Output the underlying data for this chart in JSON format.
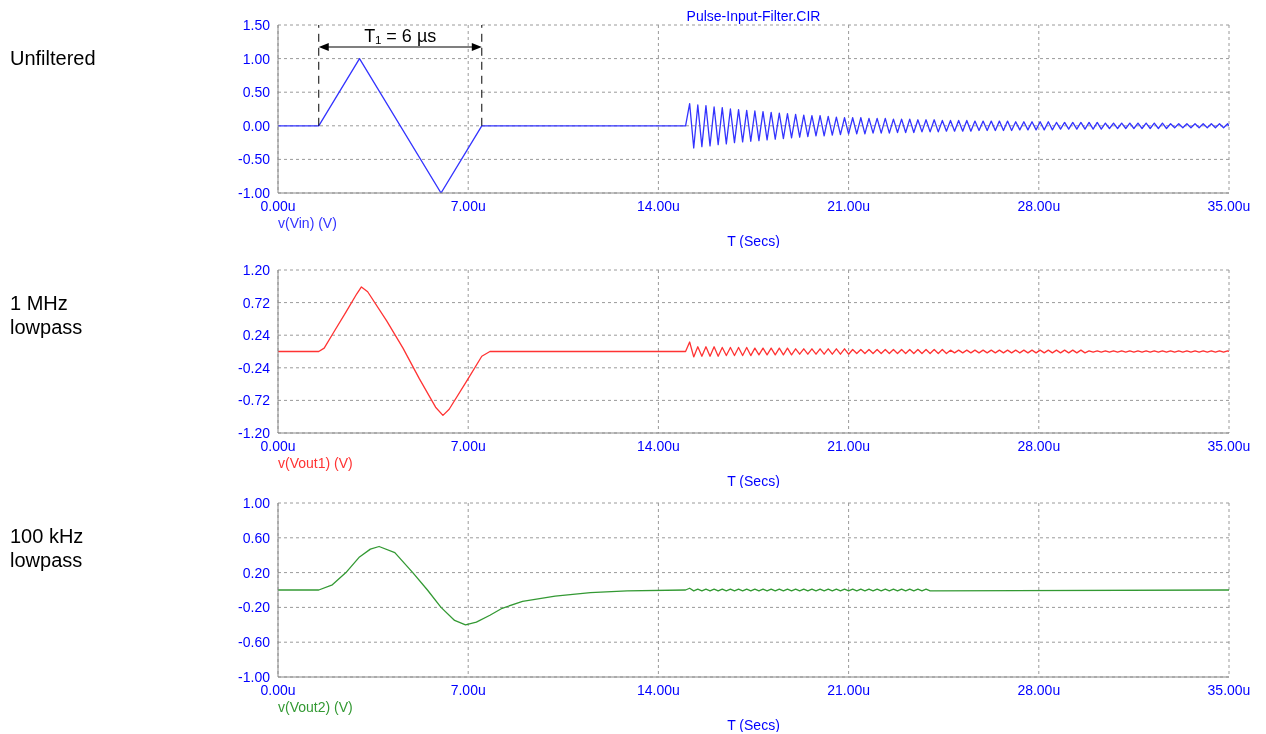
{
  "chart_data": [
    {
      "type": "line",
      "title": "Pulse-Input-Filter.CIR",
      "ylabel": "Unfiltered",
      "xlabel": "T (Secs)",
      "xlim": [
        0,
        35
      ],
      "xticks": [
        {
          "value": 0,
          "label": "0.00u"
        },
        {
          "value": 7,
          "label": "7.00u"
        },
        {
          "value": 14,
          "label": "14.00u"
        },
        {
          "value": 21,
          "label": "21.00u"
        },
        {
          "value": 28,
          "label": "28.00u"
        },
        {
          "value": 35,
          "label": "35.00u"
        }
      ],
      "ylim": [
        -1,
        1.5
      ],
      "yticks": [
        {
          "value": -1,
          "label": "-1.00"
        },
        {
          "value": -0.5,
          "label": "-0.50"
        },
        {
          "value": 0,
          "label": "0.00"
        },
        {
          "value": 0.5,
          "label": "0.50"
        },
        {
          "value": 1,
          "label": "1.00"
        },
        {
          "value": 1.5,
          "label": "1.50"
        }
      ],
      "grid": true,
      "legend": "bottom left",
      "annotations": [
        "T₁ = 6 µs"
      ],
      "ref_lines": [
        {
          "axis": "x",
          "value": 1.5,
          "color": "#000000",
          "line_style": "dashed"
        },
        {
          "axis": "x",
          "value": 7.5,
          "color": "#000000",
          "line_style": "dashed"
        }
      ],
      "series": [
        {
          "name": "v(Vin) (V)",
          "color": "#3333ff",
          "x": [
            0,
            1.5,
            3,
            6,
            7.5,
            15,
            15.15,
            15.3,
            15.45,
            15.6,
            15.75,
            15.9,
            16.05,
            16.2,
            16.35,
            16.5,
            16.65,
            16.8,
            16.95,
            17.1,
            17.25,
            17.4,
            17.55,
            17.7,
            17.85,
            18,
            18.15,
            18.3,
            18.45,
            18.6,
            18.75,
            18.9,
            19.05,
            19.2,
            19.35,
            19.5,
            19.65,
            19.8,
            19.95,
            20.1,
            20.25,
            20.4,
            20.55,
            20.7,
            20.85,
            21,
            21.15,
            21.3,
            21.45,
            21.6,
            21.75,
            21.9,
            22.05,
            22.2,
            22.35,
            22.5,
            22.65,
            22.8,
            22.95,
            23.1,
            23.25,
            23.4,
            23.55,
            23.7,
            23.85,
            24,
            24.15,
            24.3,
            24.45,
            24.6,
            24.75,
            24.9,
            25.05,
            25.2,
            25.35,
            25.5,
            25.65,
            25.8,
            25.95,
            26.1,
            26.25,
            26.4,
            26.55,
            26.7,
            26.85,
            27,
            27.15,
            27.3,
            27.45,
            27.6,
            27.75,
            27.9,
            28.05,
            28.2,
            28.35,
            28.5,
            28.65,
            28.8,
            28.95,
            29.1,
            29.25,
            29.4,
            29.55,
            29.7,
            29.85,
            30,
            30.15,
            30.3,
            30.45,
            30.6,
            30.75,
            30.9,
            31.05,
            31.2,
            31.35,
            31.5,
            31.65,
            31.8,
            31.95,
            32.1,
            32.25,
            32.4,
            32.55,
            32.7,
            32.85,
            33,
            33.15,
            33.3,
            33.45,
            33.6,
            33.75,
            33.9,
            34.05,
            34.2,
            34.35,
            34.5,
            34.65,
            34.8,
            34.95,
            35
          ],
          "values": [
            0,
            0,
            1,
            -1,
            0,
            0,
            0.33,
            -0.33,
            0.31,
            -0.31,
            0.3,
            -0.3,
            0.28,
            -0.28,
            0.27,
            -0.27,
            0.25,
            -0.25,
            0.24,
            -0.24,
            0.23,
            -0.23,
            0.22,
            -0.22,
            0.21,
            -0.21,
            0.2,
            -0.2,
            0.19,
            -0.19,
            0.18,
            -0.18,
            0.17,
            -0.17,
            0.16,
            -0.16,
            0.15,
            -0.15,
            0.15,
            -0.15,
            0.14,
            -0.14,
            0.13,
            -0.13,
            0.12,
            -0.12,
            0.12,
            -0.12,
            0.12,
            -0.12,
            0.11,
            -0.11,
            0.11,
            -0.11,
            0.11,
            -0.11,
            0.1,
            -0.1,
            0.1,
            -0.1,
            0.1,
            -0.1,
            0.09,
            -0.09,
            0.09,
            -0.09,
            0.09,
            -0.09,
            0.08,
            -0.08,
            0.08,
            -0.08,
            0.08,
            -0.08,
            0.08,
            -0.08,
            0.07,
            -0.07,
            0.07,
            -0.07,
            0.07,
            -0.07,
            0.07,
            -0.07,
            0.07,
            -0.07,
            0.06,
            -0.06,
            0.06,
            -0.06,
            0.06,
            -0.06,
            0.06,
            -0.06,
            0.06,
            -0.06,
            0.05,
            -0.05,
            0.05,
            -0.05,
            0.05,
            -0.05,
            0.05,
            -0.05,
            0.05,
            -0.05,
            0.05,
            -0.05,
            0.04,
            -0.04,
            0.04,
            -0.04,
            0.04,
            -0.04,
            0.04,
            -0.04,
            0.04,
            -0.04,
            0.04,
            -0.04,
            0.04,
            -0.04,
            0.04,
            -0.04,
            0.03,
            -0.03,
            0.03,
            -0.03,
            0.03,
            -0.03,
            0.03,
            -0.03,
            0.03,
            -0.03,
            0.03,
            -0.03,
            0.03,
            -0.03,
            0.03,
            0
          ]
        }
      ]
    },
    {
      "type": "line",
      "ylabel": "1 MHz lowpass",
      "xlabel": "T (Secs)",
      "xlim": [
        0,
        35
      ],
      "xticks": [
        {
          "value": 0,
          "label": "0.00u"
        },
        {
          "value": 7,
          "label": "7.00u"
        },
        {
          "value": 14,
          "label": "14.00u"
        },
        {
          "value": 21,
          "label": "21.00u"
        },
        {
          "value": 28,
          "label": "28.00u"
        },
        {
          "value": 35,
          "label": "35.00u"
        }
      ],
      "ylim": [
        -1.2,
        1.2
      ],
      "yticks": [
        {
          "value": -1.2,
          "label": "-1.20"
        },
        {
          "value": -0.72,
          "label": "-0.72"
        },
        {
          "value": -0.24,
          "label": "-0.24"
        },
        {
          "value": 0.24,
          "label": "0.24"
        },
        {
          "value": 0.72,
          "label": "0.72"
        },
        {
          "value": 1.2,
          "label": "1.20"
        }
      ],
      "grid": true,
      "legend": "bottom left",
      "series": [
        {
          "name": "v(Vout1) (V)",
          "color": "#ff3333",
          "x": [
            0,
            1.5,
            1.7,
            2,
            2.5,
            2.9,
            3.07,
            3.3,
            4,
            4.6,
            5.2,
            5.8,
            6.07,
            6.3,
            7,
            7.5,
            7.8,
            15,
            15.15,
            15.3,
            15.45,
            15.6,
            15.75,
            15.9,
            16.05,
            16.2,
            16.35,
            16.5,
            16.65,
            16.8,
            16.95,
            17.1,
            17.25,
            17.4,
            17.55,
            17.7,
            17.85,
            18,
            18.15,
            18.3,
            18.45,
            18.6,
            18.75,
            18.9,
            19.05,
            19.2,
            19.35,
            19.5,
            19.65,
            19.8,
            19.95,
            20.1,
            20.25,
            20.4,
            20.55,
            20.7,
            20.85,
            21,
            21.15,
            21.3,
            21.45,
            21.6,
            21.75,
            21.9,
            22.05,
            22.2,
            22.35,
            22.5,
            22.65,
            22.8,
            22.95,
            23.1,
            23.25,
            23.4,
            23.55,
            23.7,
            23.85,
            24,
            24.15,
            24.3,
            24.45,
            24.6,
            24.75,
            24.9,
            25.05,
            25.2,
            25.35,
            25.5,
            25.65,
            25.8,
            25.95,
            26.1,
            26.25,
            26.4,
            26.55,
            26.7,
            26.85,
            27,
            27.15,
            27.3,
            27.45,
            27.6,
            27.75,
            27.9,
            28.05,
            28.2,
            28.35,
            28.5,
            28.65,
            28.8,
            28.95,
            29.1,
            29.25,
            29.4,
            29.55,
            29.7,
            29.85,
            30,
            30.15,
            30.3,
            30.45,
            30.6,
            30.75,
            30.9,
            31.05,
            31.2,
            31.35,
            31.5,
            31.65,
            31.8,
            31.95,
            32.1,
            32.25,
            32.4,
            32.55,
            32.7,
            32.85,
            33,
            33.15,
            33.3,
            33.45,
            33.6,
            33.75,
            33.9,
            34.05,
            34.2,
            34.35,
            34.5,
            34.65,
            34.8,
            34.95,
            35
          ],
          "values": [
            0,
            0,
            0.05,
            0.25,
            0.58,
            0.85,
            0.95,
            0.88,
            0.45,
            0.05,
            -0.4,
            -0.82,
            -0.94,
            -0.85,
            -0.4,
            -0.07,
            0,
            0,
            0.14,
            -0.08,
            0.07,
            -0.07,
            0.07,
            -0.07,
            0.07,
            -0.07,
            0.06,
            -0.06,
            0.06,
            -0.06,
            0.06,
            -0.06,
            0.06,
            -0.06,
            0.05,
            -0.05,
            0.05,
            -0.05,
            0.05,
            -0.05,
            0.05,
            -0.05,
            0.05,
            -0.05,
            0.04,
            -0.04,
            0.04,
            -0.04,
            0.04,
            -0.04,
            0.04,
            -0.04,
            0.04,
            -0.04,
            0.04,
            -0.04,
            0.04,
            -0.04,
            0.03,
            -0.03,
            0.03,
            -0.03,
            0.03,
            -0.03,
            0.03,
            -0.03,
            0.03,
            -0.03,
            0.03,
            -0.03,
            0.03,
            -0.03,
            0.03,
            -0.03,
            0.03,
            -0.03,
            0.03,
            -0.03,
            0.03,
            -0.03,
            0.03,
            -0.03,
            0.02,
            -0.02,
            0.02,
            -0.02,
            0.02,
            -0.02,
            0.02,
            -0.02,
            0.02,
            -0.02,
            0.02,
            -0.02,
            0.02,
            -0.02,
            0.02,
            -0.02,
            0.02,
            -0.02,
            0.02,
            -0.02,
            0.02,
            -0.02,
            0.02,
            -0.02,
            0.02,
            -0.02,
            0.02,
            -0.02,
            0.02,
            -0.02,
            0.02,
            -0.02,
            0.02,
            -0.02,
            0.01,
            -0.01,
            0.01,
            -0.01,
            0.01,
            -0.01,
            0.01,
            -0.01,
            0.01,
            -0.01,
            0.01,
            -0.01,
            0.01,
            -0.01,
            0.01,
            -0.01,
            0.01,
            -0.01,
            0.01,
            -0.01,
            0.01,
            -0.01,
            0.01,
            -0.01,
            0.01,
            -0.01,
            0.01,
            -0.01,
            0.01,
            -0.01,
            0.01,
            -0.01,
            0.01,
            -0.01,
            0.01,
            0
          ]
        }
      ]
    },
    {
      "type": "line",
      "ylabel": "100 kHz lowpass",
      "xlabel": "T (Secs)",
      "xlim": [
        0,
        35
      ],
      "xticks": [
        {
          "value": 0,
          "label": "0.00u"
        },
        {
          "value": 7,
          "label": "7.00u"
        },
        {
          "value": 14,
          "label": "14.00u"
        },
        {
          "value": 21,
          "label": "21.00u"
        },
        {
          "value": 28,
          "label": "28.00u"
        },
        {
          "value": 35,
          "label": "35.00u"
        }
      ],
      "ylim": [
        -1,
        1
      ],
      "yticks": [
        {
          "value": -1,
          "label": "-1.00"
        },
        {
          "value": -0.6,
          "label": "-0.60"
        },
        {
          "value": -0.2,
          "label": "-0.20"
        },
        {
          "value": 0.2,
          "label": "0.20"
        },
        {
          "value": 0.6,
          "label": "0.60"
        },
        {
          "value": 1,
          "label": "1.00"
        }
      ],
      "grid": true,
      "legend": "bottom left",
      "series": [
        {
          "name": "v(Vout2) (V)",
          "color": "#339933",
          "x": [
            0,
            1.5,
            2,
            2.5,
            3,
            3.4,
            3.72,
            4.3,
            4.96,
            5.5,
            6,
            6.5,
            6.9,
            7.3,
            7.8,
            8.25,
            9,
            10.2,
            11.5,
            12.85,
            15,
            15.15,
            15.3,
            15.45,
            15.6,
            15.75,
            15.9,
            16.05,
            16.2,
            16.35,
            16.5,
            16.65,
            16.8,
            16.95,
            17.1,
            17.25,
            17.4,
            17.55,
            17.7,
            17.85,
            18,
            18.15,
            18.3,
            18.45,
            18.6,
            18.75,
            18.9,
            19.05,
            19.2,
            19.35,
            19.5,
            19.65,
            19.8,
            19.95,
            20.1,
            20.25,
            20.4,
            20.55,
            20.7,
            20.85,
            21,
            21.15,
            21.3,
            21.45,
            21.6,
            21.75,
            21.9,
            22.05,
            22.2,
            22.35,
            22.5,
            22.65,
            22.8,
            22.95,
            23.1,
            23.25,
            23.4,
            23.55,
            23.7,
            23.85,
            24,
            35
          ],
          "values": [
            0,
            0,
            0.06,
            0.2,
            0.38,
            0.47,
            0.5,
            0.43,
            0.2,
            0,
            -0.2,
            -0.35,
            -0.4,
            -0.37,
            -0.29,
            -0.21,
            -0.13,
            -0.07,
            -0.03,
            -0.01,
            0,
            0.02,
            -0.01,
            0.01,
            -0.01,
            0.01,
            -0.01,
            0.01,
            -0.01,
            0.01,
            -0.01,
            0.01,
            -0.01,
            0.01,
            -0.01,
            0.01,
            -0.01,
            0.01,
            -0.01,
            0.01,
            -0.01,
            0.01,
            -0.01,
            0.01,
            -0.01,
            0.01,
            -0.01,
            0.01,
            -0.01,
            0.01,
            -0.01,
            0.01,
            -0.01,
            0.01,
            -0.01,
            0.01,
            -0.01,
            0.01,
            -0.01,
            0.01,
            -0.01,
            0.01,
            -0.01,
            0.01,
            -0.01,
            0.01,
            -0.01,
            0.01,
            -0.01,
            0.01,
            -0.01,
            0.01,
            -0.01,
            0.01,
            -0.01,
            0.01,
            -0.01,
            0.01,
            -0.01,
            0.01,
            -0.01,
            0
          ]
        }
      ]
    }
  ]
}
